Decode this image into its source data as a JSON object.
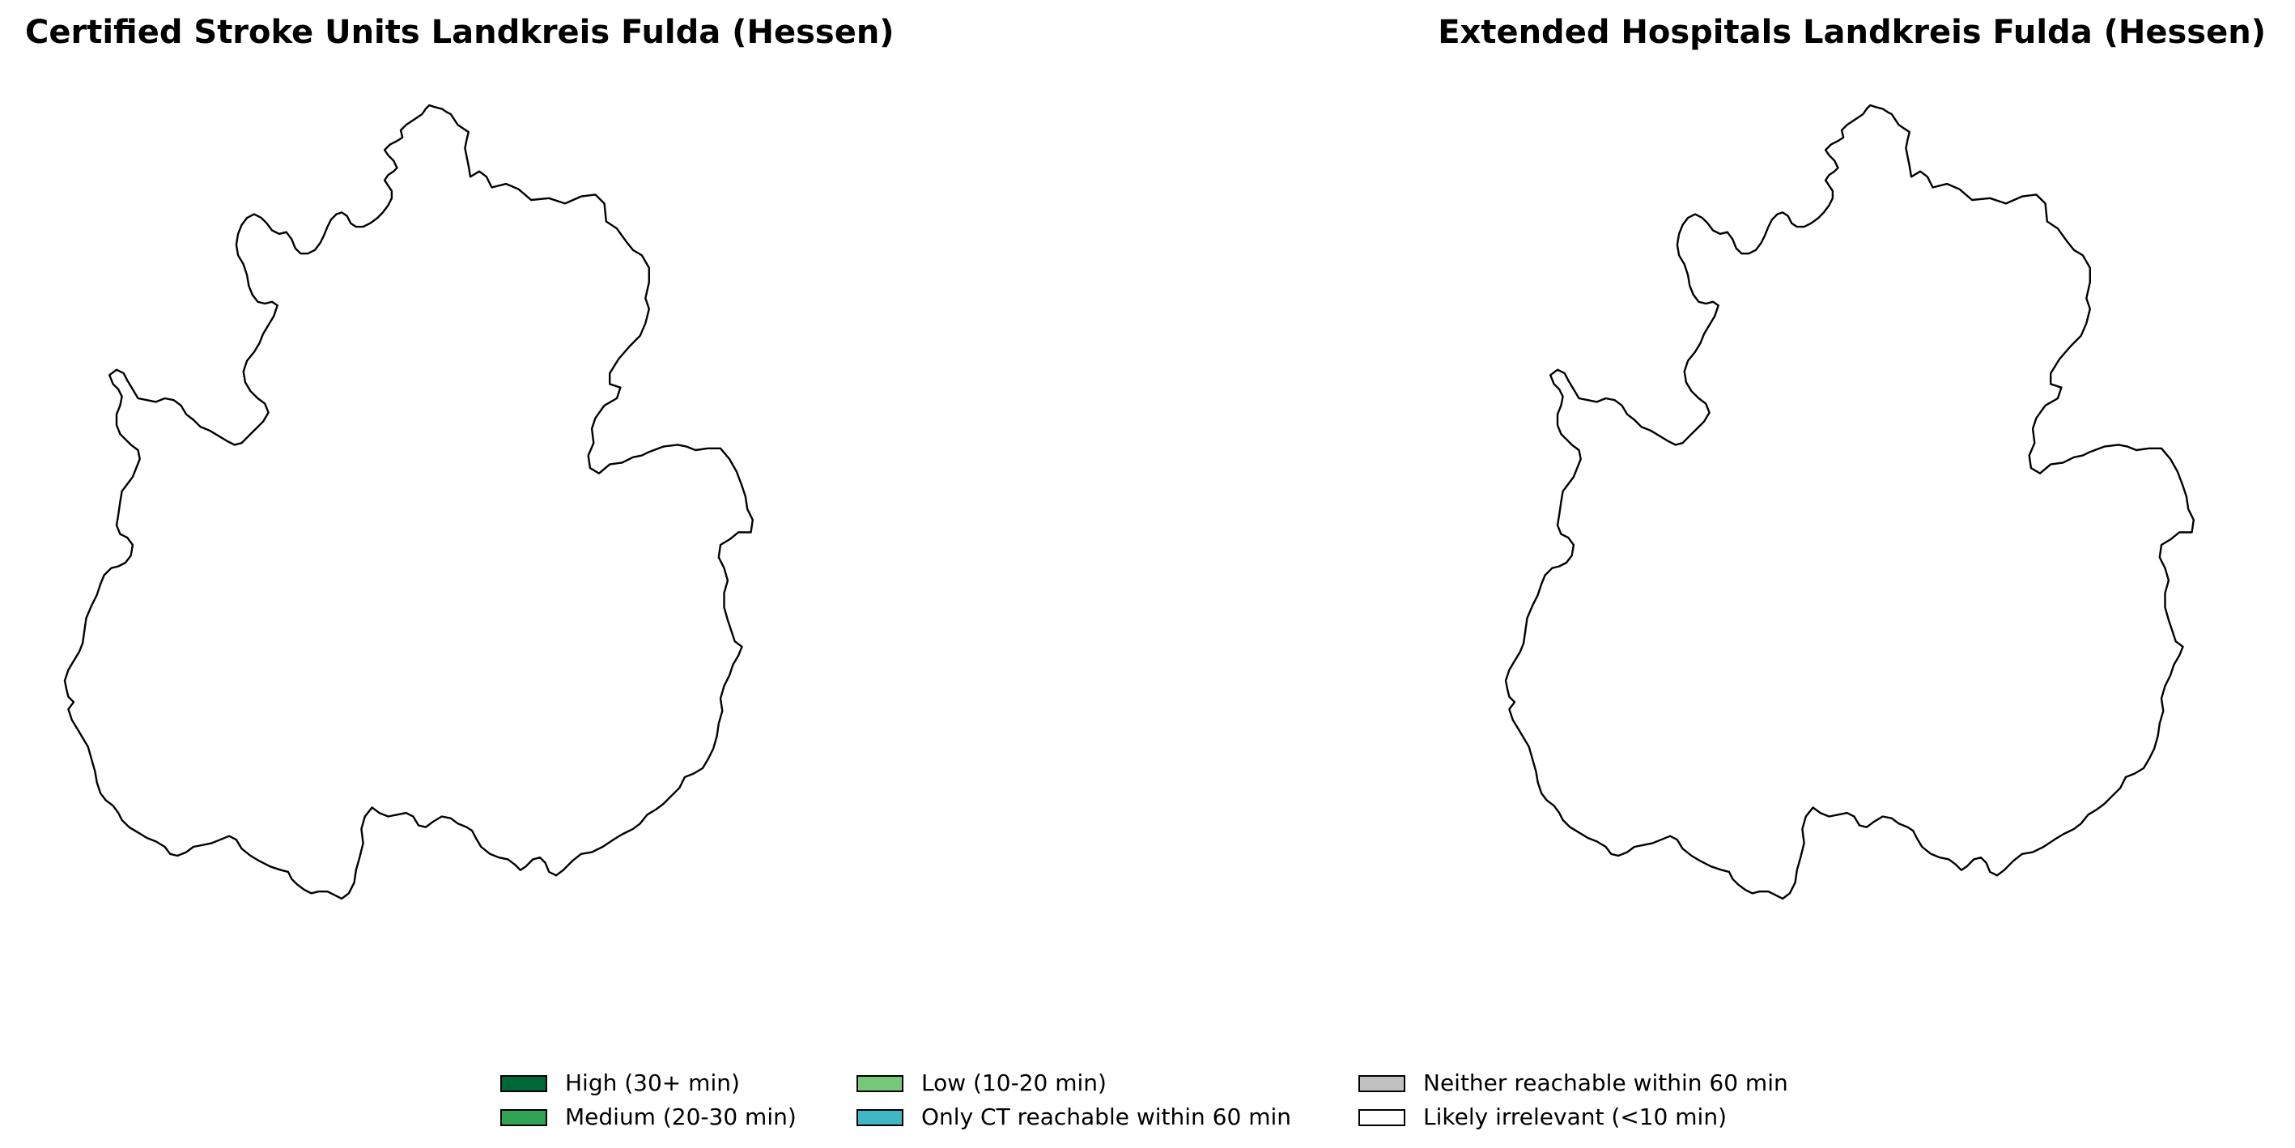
{
  "panels": [
    {
      "title": "Certified Stroke Units Landkreis Fulda (Hessen)",
      "region": "Landkreis Fulda (Hessen)",
      "fill": "#ffffff"
    },
    {
      "title": "Extended Hospitals Landkreis Fulda (Hessen)",
      "region": "Landkreis Fulda (Hessen)",
      "fill": "#ffffff"
    }
  ],
  "legend": {
    "items": [
      {
        "label": "High (30+ min)",
        "color": "#006837"
      },
      {
        "label": "Medium (20-30 min)",
        "color": "#31a354"
      },
      {
        "label": "Low (10-20 min)",
        "color": "#78c679"
      },
      {
        "label": "Only CT reachable within 60 min",
        "color": "#41b6c4"
      },
      {
        "label": "Neither reachable within 60 min",
        "color": "#c0c0c0"
      },
      {
        "label": "Likely irrelevant (<10 min)",
        "color": "#ffffff"
      }
    ]
  }
}
